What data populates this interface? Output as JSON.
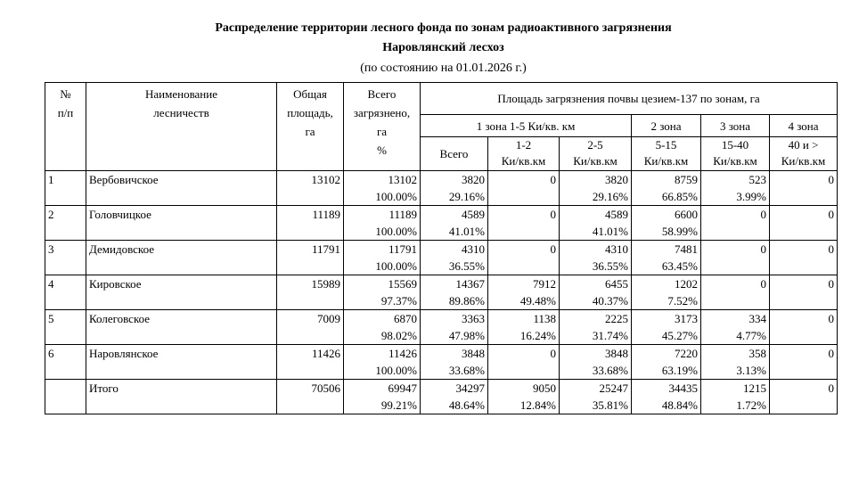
{
  "header": {
    "title": [
      "Распределение территории лесного фонда по зонам радиоактивного загрязнения",
      "Наровлянский лесхоз"
    ],
    "subtitle": "(по состоянию на  01.01.2026 г.)"
  },
  "table": {
    "columns": {
      "num": [
        "№",
        "п/п"
      ],
      "name": [
        "Наименование",
        "лесничеств"
      ],
      "total": [
        "Общая",
        "площадь,",
        "га"
      ],
      "contaminated": [
        "Всего",
        "загрязнено,",
        "га",
        "%"
      ],
      "zones_title": "Площадь загрязнения почвы цезием-137 по зонам, га",
      "zones": [
        "1 зона  1-5 Ки/кв. км",
        "2 зона",
        "3 зона",
        "4 зона"
      ],
      "sub": [
        [
          "Всего"
        ],
        [
          "1-2",
          "Ки/кв.км"
        ],
        [
          "2-5",
          "Ки/кв.км"
        ],
        [
          "5-15",
          "Ки/кв.км"
        ],
        [
          "15-40",
          "Ки/кв.км"
        ],
        [
          "40 и >",
          "Ки/кв.км"
        ]
      ]
    },
    "rows": [
      {
        "num": "1",
        "name": "Вербовичское",
        "total": 13102,
        "cells": [
          [
            13102,
            "100.00%"
          ],
          [
            3820,
            "29.16%"
          ],
          [
            0
          ],
          [
            3820,
            "29.16%"
          ],
          [
            8759,
            "66.85%"
          ],
          [
            523,
            "3.99%"
          ],
          [
            0
          ]
        ]
      },
      {
        "num": "2",
        "name": "Головчицкое",
        "total": 11189,
        "cells": [
          [
            11189,
            "100.00%"
          ],
          [
            4589,
            "41.01%"
          ],
          [
            0
          ],
          [
            4589,
            "41.01%"
          ],
          [
            6600,
            "58.99%"
          ],
          [
            0
          ],
          [
            0
          ]
        ]
      },
      {
        "num": "3",
        "name": "Демидовское",
        "total": 11791,
        "cells": [
          [
            11791,
            "100.00%"
          ],
          [
            4310,
            "36.55%"
          ],
          [
            0
          ],
          [
            4310,
            "36.55%"
          ],
          [
            7481,
            "63.45%"
          ],
          [
            0
          ],
          [
            0
          ]
        ]
      },
      {
        "num": "4",
        "name": "Кировское",
        "total": 15989,
        "cells": [
          [
            15569,
            "97.37%"
          ],
          [
            14367,
            "89.86%"
          ],
          [
            7912,
            "49.48%"
          ],
          [
            6455,
            "40.37%"
          ],
          [
            1202,
            "7.52%"
          ],
          [
            0
          ],
          [
            0
          ]
        ]
      },
      {
        "num": "5",
        "name": "Колеговское",
        "total": 7009,
        "cells": [
          [
            6870,
            "98.02%"
          ],
          [
            3363,
            "47.98%"
          ],
          [
            1138,
            "16.24%"
          ],
          [
            2225,
            "31.74%"
          ],
          [
            3173,
            "45.27%"
          ],
          [
            334,
            "4.77%"
          ],
          [
            0
          ]
        ]
      },
      {
        "num": "6",
        "name": "Наровлянское",
        "total": 11426,
        "cells": [
          [
            11426,
            "100.00%"
          ],
          [
            3848,
            "33.68%"
          ],
          [
            0
          ],
          [
            3848,
            "33.68%"
          ],
          [
            7220,
            "63.19%"
          ],
          [
            358,
            "3.13%"
          ],
          [
            0
          ]
        ]
      },
      {
        "name": "Итого",
        "total": 70506,
        "cells": [
          [
            69947,
            "99.21%"
          ],
          [
            34297,
            "48.64%"
          ],
          [
            9050,
            "12.84%"
          ],
          [
            25247,
            "35.81%"
          ],
          [
            34435,
            "48.84%"
          ],
          [
            1215,
            "1.72%"
          ],
          [
            0
          ]
        ]
      }
    ]
  }
}
